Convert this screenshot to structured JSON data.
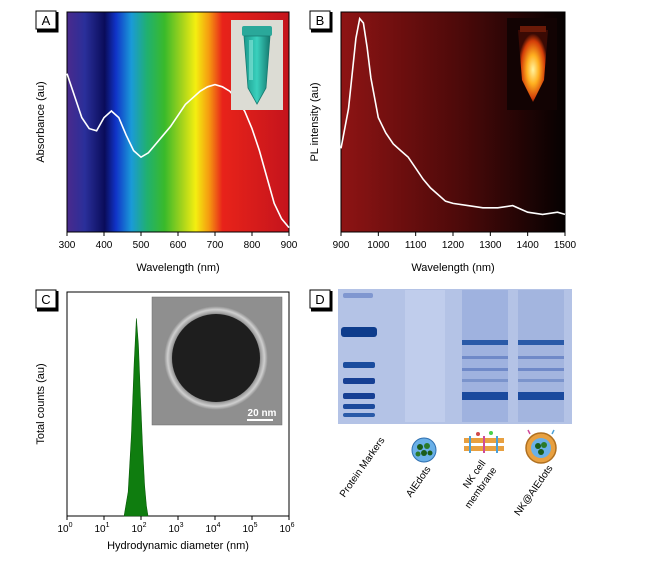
{
  "panels": {
    "A": {
      "letter": "A",
      "xlabel": "Wavelength (nm)",
      "ylabel": "Absorbance (au)",
      "xticks": [
        "300",
        "400",
        "500",
        "600",
        "700",
        "800",
        "900"
      ]
    },
    "B": {
      "letter": "B",
      "xlabel": "Wavelength (nm)",
      "ylabel": "PL intensity (au)",
      "xticks": [
        "900",
        "1000",
        "1100",
        "1200",
        "1300",
        "1400",
        "1500"
      ]
    },
    "C": {
      "letter": "C",
      "xlabel": "Hydrodynamic diameter (nm)",
      "ylabel": "Total counts (au)",
      "xticks": [
        {
          "base": "10",
          "exp": "0"
        },
        {
          "base": "10",
          "exp": "1"
        },
        {
          "base": "10",
          "exp": "2"
        },
        {
          "base": "10",
          "exp": "3"
        },
        {
          "base": "10",
          "exp": "4"
        },
        {
          "base": "10",
          "exp": "5"
        },
        {
          "base": "10",
          "exp": "6"
        }
      ],
      "scalebar": "20 nm"
    },
    "D": {
      "letter": "D",
      "lanes": [
        "Protein Markers",
        "AIEdots",
        "NK cell membrane",
        "NK@AIEdots"
      ],
      "lane_lines": [
        [
          "Protein Markers"
        ],
        [
          "AIEdots"
        ],
        [
          "NK cell",
          "membrane"
        ],
        [
          "NK@AIEdots"
        ]
      ]
    }
  },
  "colors": {
    "curve": "#ffffff",
    "histogram": "#0f7d0f",
    "gel": "#aebfe6",
    "band": "#1f4f9e"
  },
  "chart_data": [
    {
      "type": "line",
      "panel": "A",
      "title": "",
      "xlabel": "Wavelength (nm)",
      "ylabel": "Absorbance (au)",
      "xlim": [
        300,
        900
      ],
      "ylim": [
        0,
        1
      ],
      "background": "visible-spectrum gradient",
      "series": [
        {
          "x": [
            300,
            320,
            340,
            360,
            380,
            400,
            420,
            440,
            460,
            480,
            500,
            520,
            540,
            560,
            580,
            600,
            620,
            640,
            660,
            680,
            700,
            720,
            740,
            760,
            780,
            800,
            820,
            840,
            860,
            880,
            900
          ],
          "y": [
            0.72,
            0.62,
            0.52,
            0.47,
            0.46,
            0.52,
            0.55,
            0.52,
            0.44,
            0.37,
            0.34,
            0.36,
            0.4,
            0.44,
            0.48,
            0.53,
            0.58,
            0.61,
            0.64,
            0.66,
            0.67,
            0.66,
            0.64,
            0.6,
            0.55,
            0.47,
            0.37,
            0.25,
            0.13,
            0.06,
            0.02
          ]
        }
      ]
    },
    {
      "type": "line",
      "panel": "B",
      "title": "",
      "xlabel": "Wavelength (nm)",
      "ylabel": "PL intensity (au)",
      "xlim": [
        900,
        1500
      ],
      "ylim": [
        0,
        1
      ],
      "background": "dark red to black gradient",
      "series": [
        {
          "x": [
            900,
            920,
            940,
            950,
            960,
            970,
            980,
            1000,
            1020,
            1040,
            1060,
            1080,
            1100,
            1120,
            1140,
            1160,
            1180,
            1200,
            1240,
            1280,
            1320,
            1360,
            1400,
            1440,
            1480,
            1500
          ],
          "y": [
            0.38,
            0.56,
            0.88,
            0.97,
            0.95,
            0.84,
            0.7,
            0.52,
            0.45,
            0.4,
            0.37,
            0.34,
            0.29,
            0.24,
            0.2,
            0.17,
            0.14,
            0.13,
            0.12,
            0.11,
            0.11,
            0.12,
            0.09,
            0.08,
            0.09,
            0.08
          ]
        }
      ]
    },
    {
      "type": "area",
      "panel": "C",
      "title": "",
      "xlabel": "Hydrodynamic diameter (nm)",
      "ylabel": "Total counts (au)",
      "xscale": "log",
      "xlim": [
        1,
        1000000
      ],
      "ylim": [
        0,
        1
      ],
      "series": [
        {
          "x": [
            35,
            45,
            55,
            65,
            75,
            85,
            95,
            110,
            125,
            140,
            155
          ],
          "y": [
            0.0,
            0.12,
            0.4,
            0.75,
            0.98,
            0.85,
            0.62,
            0.35,
            0.15,
            0.05,
            0.0
          ]
        }
      ]
    }
  ]
}
